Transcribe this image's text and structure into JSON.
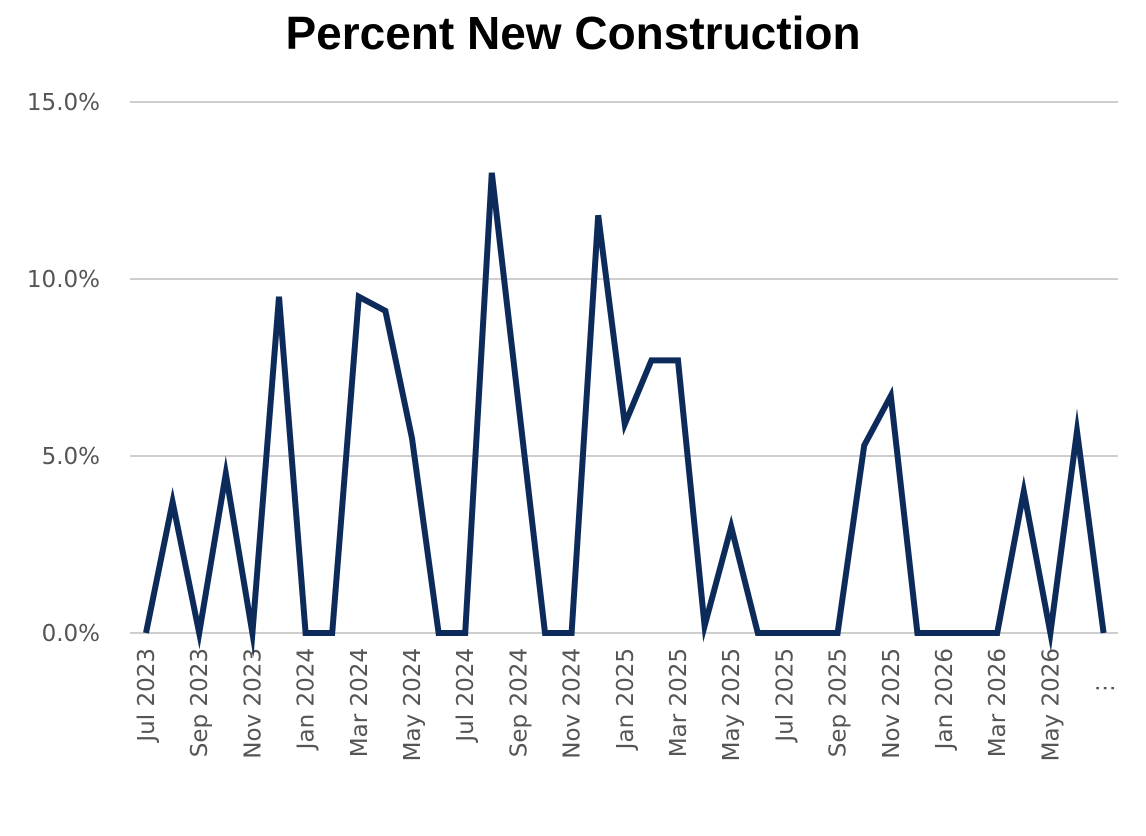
{
  "chart_data": {
    "type": "line",
    "title": "Percent New Construction",
    "xlabel": "",
    "ylabel": "",
    "ylim": [
      0,
      15
    ],
    "y_ticks": [
      "0.0%",
      "5.0%",
      "10.0%",
      "15.0%"
    ],
    "y_tick_values": [
      0,
      5,
      10,
      15
    ],
    "x_tick_labels": [
      "Jul 2023",
      "Sep 2023",
      "Nov 2023",
      "Jan 2024",
      "Mar 2024",
      "May 2024",
      "Jul 2024",
      "Sep 2024",
      "Nov 2024",
      "Jan 2025",
      "Mar 2025",
      "May 2025",
      "Jul 2025",
      "Sep 2025",
      "Nov 2025",
      "Jan 2026",
      "Mar 2026",
      "May 2026"
    ],
    "overflow_indicator": "⋮",
    "grid": true,
    "legend": "none",
    "series": [
      {
        "color": "#0d2b5a",
        "x": [
          "Jul 2023",
          "Aug 2023",
          "Sep 2023",
          "Oct 2023",
          "Nov 2023",
          "Dec 2023",
          "Jan 2024",
          "Feb 2024",
          "Mar 2024",
          "Apr 2024",
          "May 2024",
          "Jun 2024",
          "Jul 2024",
          "Aug 2024",
          "Sep 2024",
          "Oct 2024",
          "Nov 2024",
          "Dec 2024",
          "Jan 2025",
          "Feb 2025",
          "Mar 2025",
          "Apr 2025",
          "May 2025",
          "Jun 2025",
          "Jul 2025",
          "Aug 2025",
          "Sep 2025",
          "Oct 2025",
          "Nov 2025",
          "Dec 2025",
          "Jan 2026",
          "Feb 2026",
          "Mar 2026",
          "Apr 2026",
          "May 2026",
          "Jun 2026",
          "Jul 2026"
        ],
        "values": [
          0,
          3.7,
          0,
          4.5,
          0,
          9.5,
          0,
          0,
          9.5,
          9.1,
          5.5,
          0,
          0,
          13.0,
          6.5,
          0,
          0,
          11.8,
          5.9,
          7.7,
          7.7,
          0.2,
          3.0,
          0,
          0,
          0,
          0,
          5.3,
          6.7,
          0,
          0,
          0,
          0,
          4.0,
          0,
          5.7,
          0
        ]
      }
    ]
  }
}
